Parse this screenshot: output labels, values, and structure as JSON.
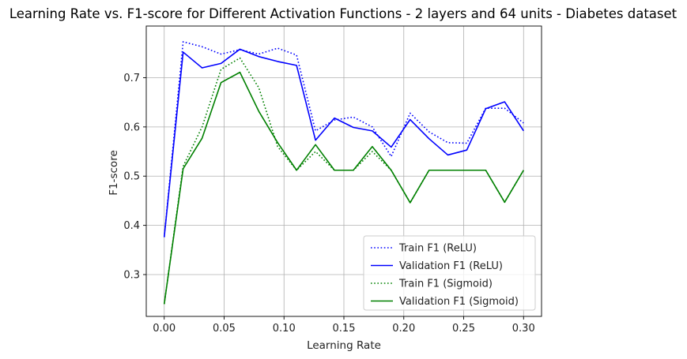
{
  "chart_data": {
    "type": "line",
    "title": "Learning Rate vs. F1-score for Different Activation Functions - 2 layers and 64 units - Diabetes dataset",
    "xlabel": "Learning Rate",
    "ylabel": "F1-score",
    "xlim": [
      -0.015,
      0.315
    ],
    "ylim": [
      0.215,
      0.805
    ],
    "xticks": [
      0.0,
      0.05,
      0.1,
      0.15,
      0.2,
      0.25,
      0.3
    ],
    "xtick_labels": [
      "0.00",
      "0.05",
      "0.10",
      "0.15",
      "0.20",
      "0.25",
      "0.30"
    ],
    "yticks": [
      0.3,
      0.4,
      0.5,
      0.6,
      0.7
    ],
    "ytick_labels": [
      "0.3",
      "0.4",
      "0.5",
      "0.6",
      "0.7"
    ],
    "grid": true,
    "legend_position": "lower-right",
    "x": [
      0.0,
      0.0158,
      0.0316,
      0.0474,
      0.0632,
      0.0789,
      0.0947,
      0.1105,
      0.1263,
      0.1421,
      0.1579,
      0.1737,
      0.1895,
      0.2053,
      0.2211,
      0.2368,
      0.2526,
      0.2684,
      0.2842,
      0.3
    ],
    "series": [
      {
        "name": "Train F1 (ReLU)",
        "color": "#0000ff",
        "style": "dotted",
        "values": [
          0.376,
          0.773,
          0.763,
          0.748,
          0.757,
          0.748,
          0.76,
          0.746,
          0.592,
          0.614,
          0.62,
          0.6,
          0.54,
          0.628,
          0.59,
          0.568,
          0.567,
          0.638,
          0.638,
          0.608
        ]
      },
      {
        "name": "Validation F1 (ReLU)",
        "color": "#0000ff",
        "style": "solid",
        "values": [
          0.376,
          0.752,
          0.72,
          0.729,
          0.758,
          0.743,
          0.733,
          0.725,
          0.573,
          0.618,
          0.599,
          0.592,
          0.559,
          0.615,
          0.576,
          0.543,
          0.553,
          0.637,
          0.651,
          0.592
        ]
      },
      {
        "name": "Train F1 (Sigmoid)",
        "color": "#008000",
        "style": "dotted",
        "values": [
          0.24,
          0.52,
          0.6,
          0.717,
          0.74,
          0.68,
          0.56,
          0.512,
          0.55,
          0.512,
          0.512,
          0.55,
          0.512,
          0.446,
          0.512,
          0.512,
          0.512,
          0.512,
          0.447,
          0.512
        ]
      },
      {
        "name": "Validation F1 (Sigmoid)",
        "color": "#008000",
        "style": "solid",
        "values": [
          0.24,
          0.515,
          0.577,
          0.69,
          0.711,
          0.632,
          0.568,
          0.512,
          0.564,
          0.512,
          0.512,
          0.56,
          0.512,
          0.446,
          0.512,
          0.512,
          0.512,
          0.512,
          0.447,
          0.512
        ]
      }
    ]
  }
}
